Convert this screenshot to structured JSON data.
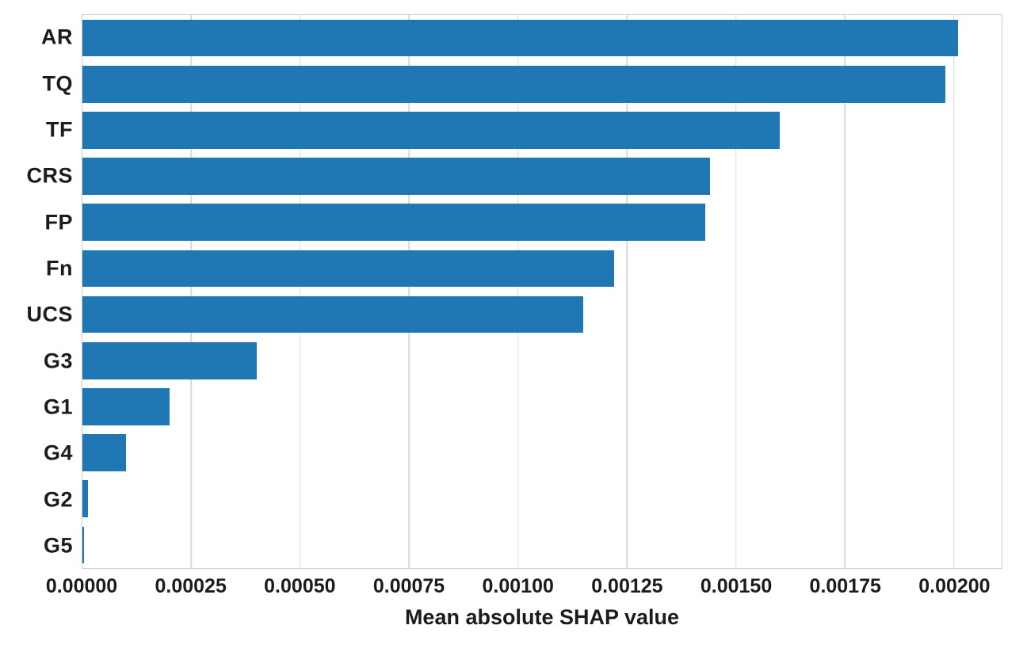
{
  "chart_data": {
    "type": "bar",
    "orientation": "horizontal",
    "title": "",
    "xlabel": "Mean absolute SHAP value",
    "ylabel": "",
    "categories": [
      "AR",
      "TQ",
      "TF",
      "CRS",
      "FP",
      "Fn",
      "UCS",
      "G3",
      "G1",
      "G4",
      "G2",
      "G5"
    ],
    "values": [
      0.00201,
      0.00198,
      0.0016,
      0.00144,
      0.00143,
      0.00122,
      0.00115,
      0.0004,
      0.0002,
      0.0001,
      1.3e-05,
      3e-06
    ],
    "xlim": [
      0,
      0.00211
    ],
    "x_tick_values": [
      0,
      0.00025,
      0.0005,
      0.00075,
      0.001,
      0.00125,
      0.0015,
      0.00175,
      0.002
    ],
    "x_tick_labels": [
      "0.00000",
      "0.00025",
      "0.00050",
      "0.00075",
      "0.00100",
      "0.00125",
      "0.00150",
      "0.00175",
      "0.00200"
    ],
    "grid": true,
    "legend": false,
    "bar_fraction": 0.8,
    "colors": {
      "bar": "#1f77b4",
      "grid": "#d9d9d9",
      "border": "#cccccc",
      "text": "#1c1c1c",
      "background": "#ffffff"
    }
  }
}
